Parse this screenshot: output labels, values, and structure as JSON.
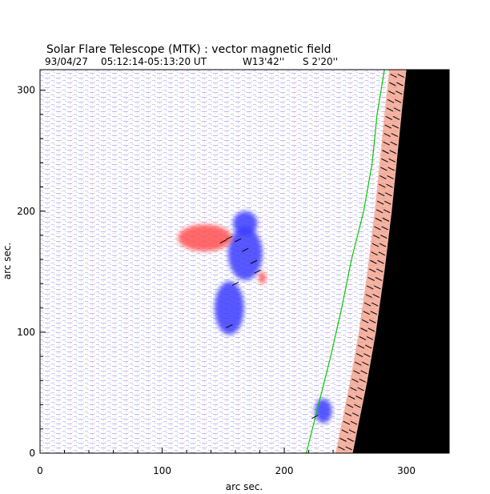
{
  "chart_data": {
    "type": "heatmap",
    "title": "Solar Flare Telescope (MTK) : vector magnetic field",
    "subtitle": {
      "date": "93/04/27",
      "time": "05:12:14-05:13:20 UT",
      "lon": "W13'42''",
      "lat": "S 2'20''"
    },
    "xlabel": "arc sec.",
    "ylabel": "arc sec.",
    "xlim": [
      0,
      335
    ],
    "ylim": [
      0,
      317
    ],
    "x_ticks": [
      {
        "value": 0,
        "label": "0"
      },
      {
        "value": 100,
        "label": "100"
      },
      {
        "value": 200,
        "label": "200"
      },
      {
        "value": 300,
        "label": "300"
      }
    ],
    "y_ticks": [
      {
        "value": 0,
        "label": "0"
      },
      {
        "value": 100,
        "label": "100"
      },
      {
        "value": 200,
        "label": "200"
      },
      {
        "value": 300,
        "label": "300"
      }
    ],
    "colors": {
      "positive_polarity": "#ff5050",
      "negative_polarity": "#3a3aff",
      "contour": "#00c800",
      "vectors": "#000000",
      "off_limb": "#000000"
    },
    "regions": [
      {
        "name": "negative-spot-main",
        "x": 168,
        "y": 165,
        "rx": 14,
        "ry": 22,
        "polarity": "negative"
      },
      {
        "name": "negative-spot-north",
        "x": 168,
        "y": 190,
        "rx": 10,
        "ry": 10,
        "polarity": "negative"
      },
      {
        "name": "negative-tail",
        "x": 155,
        "y": 120,
        "rx": 12,
        "ry": 22,
        "polarity": "negative"
      },
      {
        "name": "negative-small",
        "x": 232,
        "y": 35,
        "rx": 7,
        "ry": 10,
        "polarity": "negative"
      },
      {
        "name": "positive-plage",
        "x": 135,
        "y": 178,
        "rx": 22,
        "ry": 11,
        "polarity": "positive"
      },
      {
        "name": "positive-small",
        "x": 182,
        "y": 145,
        "rx": 3,
        "ry": 5,
        "polarity": "positive"
      }
    ],
    "limb_curve": [
      [
        256,
        0
      ],
      [
        262,
        30
      ],
      [
        268,
        60
      ],
      [
        275,
        100
      ],
      [
        282,
        150
      ],
      [
        288,
        200
      ],
      [
        293,
        250
      ],
      [
        297,
        290
      ],
      [
        300,
        317
      ]
    ],
    "contour_curve": [
      [
        218,
        0
      ],
      [
        228,
        40
      ],
      [
        238,
        80
      ],
      [
        247,
        120
      ],
      [
        255,
        160
      ],
      [
        265,
        200
      ],
      [
        272,
        240
      ],
      [
        276,
        280
      ],
      [
        282,
        317
      ]
    ]
  }
}
